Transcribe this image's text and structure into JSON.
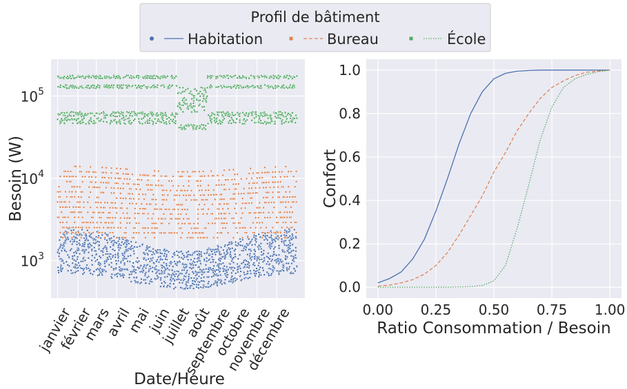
{
  "chart_data": [
    {
      "type": "scatter",
      "xlabel": "Date/Heure",
      "ylabel": "Besoin (W)",
      "y_scale": "log",
      "ylim": [
        350,
        280000
      ],
      "x_range_days": [
        -10,
        377
      ],
      "grid": true,
      "xtick_labels": [
        "janvier",
        "février",
        "mars",
        "avril",
        "mai",
        "juin",
        "juillet",
        "août",
        "septembre",
        "octobre",
        "novembre",
        "décembre"
      ],
      "xtick_positions_days": [
        0,
        31,
        59,
        90,
        120,
        151,
        181,
        212,
        243,
        273,
        304,
        334
      ],
      "ytick_labels": [
        "10",
        "10",
        "10"
      ],
      "ytick_exponents": [
        "3",
        "4",
        "5"
      ],
      "ytick_values": [
        1000,
        10000,
        100000
      ],
      "series": [
        {
          "name": "Habitation",
          "color": "#4c72b0",
          "bands": [
            {
              "lo_winter": 700,
              "hi_winter": 2500,
              "lo_summer": 450,
              "hi_summer": 1300
            }
          ]
        },
        {
          "name": "Bureau",
          "color": "#dd8452",
          "bands": [
            {
              "lo_winter": 1900,
              "hi_winter": 14000,
              "lo_summer": 1900,
              "hi_summer": 12000
            }
          ]
        },
        {
          "name": "École",
          "color": "#55a868",
          "bands": [
            {
              "level": 50000,
              "spread": 0.08
            },
            {
              "level": 60000,
              "spread": 0.06
            },
            {
              "level": 130000,
              "spread": 0.04
            },
            {
              "level": 170000,
              "spread": 0.04
            },
            {
              "summer_level": 90000,
              "summer_spread": 0.15
            }
          ]
        }
      ]
    },
    {
      "type": "line",
      "xlabel": "Ratio Consommation / Besoin",
      "ylabel": "Confort",
      "xlim": [
        -0.05,
        1.05
      ],
      "ylim": [
        -0.05,
        1.05
      ],
      "grid": true,
      "xtick_labels": [
        "0.00",
        "0.25",
        "0.50",
        "0.75",
        "1.00"
      ],
      "xtick_values": [
        0,
        0.25,
        0.5,
        0.75,
        1.0
      ],
      "ytick_labels": [
        "0.0",
        "0.2",
        "0.4",
        "0.6",
        "0.8",
        "1.0"
      ],
      "ytick_values": [
        0,
        0.2,
        0.4,
        0.6,
        0.8,
        1.0
      ],
      "series": [
        {
          "name": "Habitation",
          "color": "#4c72b0",
          "dash": "solid",
          "x": [
            0,
            0.05,
            0.1,
            0.15,
            0.2,
            0.25,
            0.3,
            0.35,
            0.4,
            0.45,
            0.5,
            0.55,
            0.6,
            0.65,
            0.7,
            0.8,
            0.9,
            1.0
          ],
          "y": [
            0.02,
            0.04,
            0.07,
            0.13,
            0.22,
            0.35,
            0.5,
            0.66,
            0.8,
            0.9,
            0.96,
            0.985,
            0.995,
            0.998,
            1.0,
            1.0,
            1.0,
            1.0
          ]
        },
        {
          "name": "Bureau",
          "color": "#dd8452",
          "dash": "dashed",
          "x": [
            0,
            0.05,
            0.1,
            0.15,
            0.2,
            0.25,
            0.3,
            0.35,
            0.4,
            0.45,
            0.5,
            0.55,
            0.6,
            0.65,
            0.7,
            0.75,
            0.8,
            0.85,
            0.9,
            0.95,
            1.0
          ],
          "y": [
            0.005,
            0.01,
            0.02,
            0.035,
            0.06,
            0.1,
            0.16,
            0.24,
            0.33,
            0.42,
            0.53,
            0.62,
            0.72,
            0.8,
            0.87,
            0.92,
            0.95,
            0.975,
            0.99,
            0.995,
            1.0
          ]
        },
        {
          "name": "École",
          "color": "#55a868",
          "dash": "dotted",
          "x": [
            0,
            0.1,
            0.2,
            0.3,
            0.4,
            0.45,
            0.5,
            0.55,
            0.6,
            0.65,
            0.7,
            0.75,
            0.8,
            0.85,
            0.9,
            0.95,
            1.0
          ],
          "y": [
            0,
            0,
            0,
            0,
            0.003,
            0.008,
            0.03,
            0.1,
            0.27,
            0.47,
            0.68,
            0.83,
            0.92,
            0.96,
            0.98,
            0.993,
            1.0
          ]
        }
      ]
    }
  ],
  "legend": {
    "title": "Profil de bâtiment",
    "entries": [
      "Habitation",
      "Bureau",
      "École"
    ],
    "placement": "top-center"
  },
  "colors": {
    "plot_bg": "#eaeaf2",
    "grid": "#ffffff",
    "text": "#262626"
  }
}
